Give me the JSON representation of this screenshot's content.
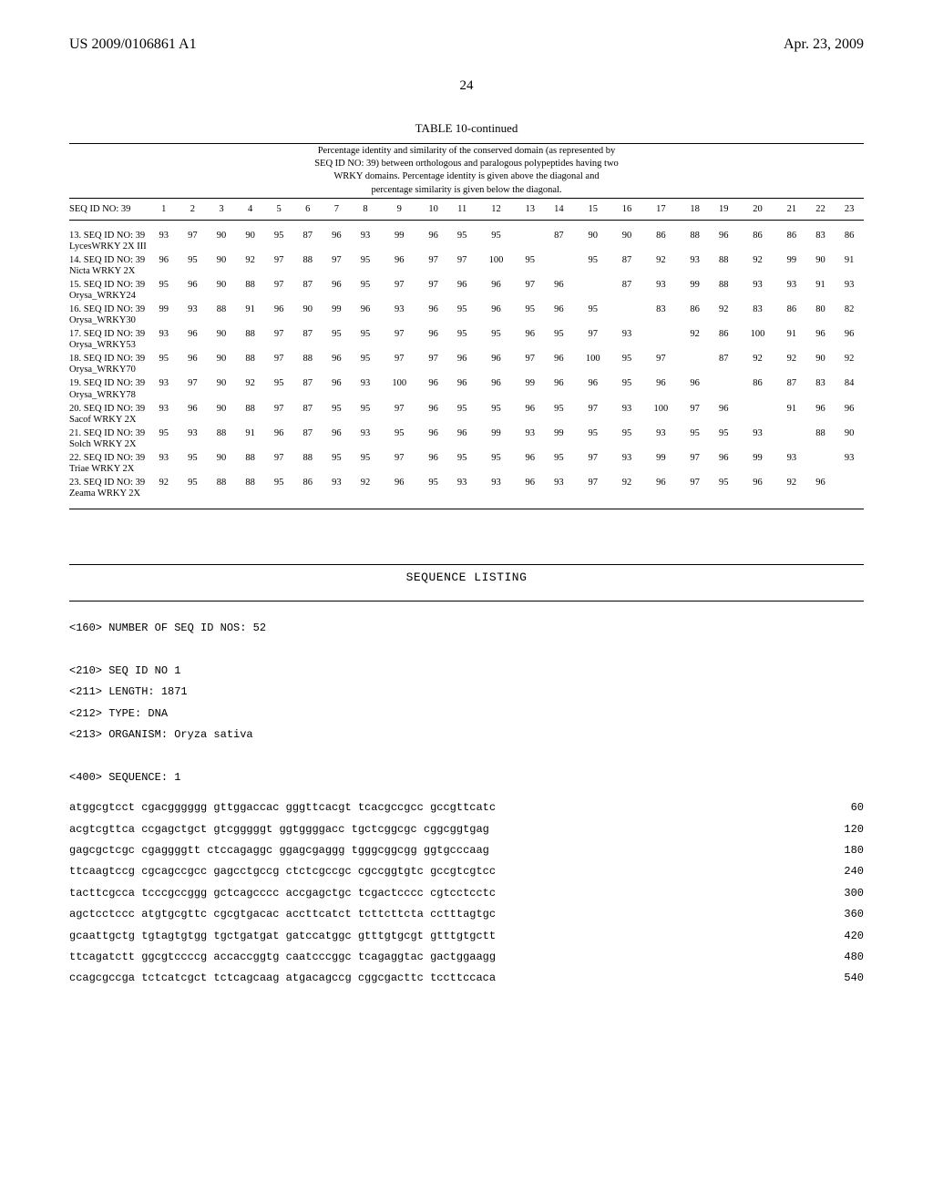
{
  "header": {
    "doc_number": "US 2009/0106861 A1",
    "date": "Apr. 23, 2009",
    "page_number": "24"
  },
  "table": {
    "title": "TABLE 10-continued",
    "caption_lines": [
      "Percentage identity and similarity of the conserved domain (as represented by",
      "SEQ ID NO: 39) between orthologous and paralogous polypeptides having two",
      "WRKY domains. Percentage identity is given above the diagonal and",
      "percentage similarity is given below the diagonal."
    ],
    "col_header_first": "SEQ ID NO: 39",
    "col_nums": [
      "1",
      "2",
      "3",
      "4",
      "5",
      "6",
      "7",
      "8",
      "9",
      "10",
      "11",
      "12",
      "13",
      "14",
      "15",
      "16",
      "17",
      "18",
      "19",
      "20",
      "21",
      "22",
      "23"
    ],
    "rows": [
      {
        "label": "13. SEQ ID NO: 39 LycesWRKY 2X III",
        "vals": [
          "93",
          "97",
          "90",
          "90",
          "95",
          "87",
          "96",
          "93",
          "99",
          "96",
          "95",
          "95",
          "",
          "87",
          "90",
          "90",
          "86",
          "88",
          "96",
          "86",
          "86",
          "83",
          "86"
        ]
      },
      {
        "label": "14. SEQ ID NO: 39 Nicta WRKY 2X",
        "vals": [
          "96",
          "95",
          "90",
          "92",
          "97",
          "88",
          "97",
          "95",
          "96",
          "97",
          "97",
          "100",
          "95",
          "",
          "95",
          "87",
          "92",
          "93",
          "88",
          "92",
          "99",
          "90",
          "91"
        ]
      },
      {
        "label": "15. SEQ ID NO: 39 Orysa_WRKY24",
        "vals": [
          "95",
          "96",
          "90",
          "88",
          "97",
          "87",
          "96",
          "95",
          "97",
          "97",
          "96",
          "96",
          "97",
          "96",
          "",
          "87",
          "93",
          "99",
          "88",
          "93",
          "93",
          "91",
          "93"
        ]
      },
      {
        "label": "16. SEQ ID NO: 39 Orysa_WRKY30",
        "vals": [
          "99",
          "93",
          "88",
          "91",
          "96",
          "90",
          "99",
          "96",
          "93",
          "96",
          "95",
          "96",
          "95",
          "96",
          "95",
          "",
          "83",
          "86",
          "92",
          "83",
          "86",
          "80",
          "82"
        ]
      },
      {
        "label": "17. SEQ ID NO: 39 Orysa_WRKY53",
        "vals": [
          "93",
          "96",
          "90",
          "88",
          "97",
          "87",
          "95",
          "95",
          "97",
          "96",
          "95",
          "95",
          "96",
          "95",
          "97",
          "93",
          "",
          "92",
          "86",
          "100",
          "91",
          "96",
          "96"
        ]
      },
      {
        "label": "18. SEQ ID NO: 39 Orysa_WRKY70",
        "vals": [
          "95",
          "96",
          "90",
          "88",
          "97",
          "88",
          "96",
          "95",
          "97",
          "97",
          "96",
          "96",
          "97",
          "96",
          "100",
          "95",
          "97",
          "",
          "87",
          "92",
          "92",
          "90",
          "92"
        ]
      },
      {
        "label": "19. SEQ ID NO: 39 Orysa_WRKY78",
        "vals": [
          "93",
          "97",
          "90",
          "92",
          "95",
          "87",
          "96",
          "93",
          "100",
          "96",
          "96",
          "96",
          "99",
          "96",
          "96",
          "95",
          "96",
          "96",
          "",
          "86",
          "87",
          "83",
          "84"
        ]
      },
      {
        "label": "20. SEQ ID NO: 39 Sacof WRKY 2X",
        "vals": [
          "93",
          "96",
          "90",
          "88",
          "97",
          "87",
          "95",
          "95",
          "97",
          "96",
          "95",
          "95",
          "96",
          "95",
          "97",
          "93",
          "100",
          "97",
          "96",
          "",
          "91",
          "96",
          "96"
        ]
      },
      {
        "label": "21. SEQ ID NO: 39 Solch WRKY 2X",
        "vals": [
          "95",
          "93",
          "88",
          "91",
          "96",
          "87",
          "96",
          "93",
          "95",
          "96",
          "96",
          "99",
          "93",
          "99",
          "95",
          "95",
          "93",
          "95",
          "95",
          "93",
          "",
          "88",
          "90"
        ]
      },
      {
        "label": "22. SEQ ID NO: 39 Triae WRKY 2X",
        "vals": [
          "93",
          "95",
          "90",
          "88",
          "97",
          "88",
          "95",
          "95",
          "97",
          "96",
          "95",
          "95",
          "96",
          "95",
          "97",
          "93",
          "99",
          "97",
          "96",
          "99",
          "93",
          "",
          "93"
        ]
      },
      {
        "label": "23. SEQ ID NO: 39 Zeama WRKY 2X",
        "vals": [
          "92",
          "95",
          "88",
          "88",
          "95",
          "86",
          "93",
          "92",
          "96",
          "95",
          "93",
          "93",
          "96",
          "93",
          "97",
          "92",
          "96",
          "97",
          "95",
          "96",
          "92",
          "96",
          ""
        ]
      }
    ]
  },
  "sequence": {
    "title": "SEQUENCE LISTING",
    "meta": [
      "<160> NUMBER OF SEQ ID NOS: 52",
      "",
      "<210> SEQ ID NO 1",
      "<211> LENGTH: 1871",
      "<212> TYPE: DNA",
      "<213> ORGANISM: Oryza sativa",
      "",
      "<400> SEQUENCE: 1"
    ],
    "lines": [
      {
        "seq": "atggcgtcct cgacgggggg gttggaccac gggttcacgt tcacgccgcc gccgttcatc",
        "pos": "60"
      },
      {
        "seq": "acgtcgttca ccgagctgct gtcgggggt ggtggggacc tgctcggcgc cggcggtgag",
        "pos": "120"
      },
      {
        "seq": "gagcgctcgc cgaggggtt ctccagaggc ggagcgaggg tgggcggcgg ggtgcccaag",
        "pos": "180"
      },
      {
        "seq": "ttcaagtccg cgcagccgcc gagcctgccg ctctcgccgc cgccggtgtc gccgtcgtcc",
        "pos": "240"
      },
      {
        "seq": "tacttcgcca tcccgccggg gctcagcccc accgagctgc tcgactcccc cgtcctcctc",
        "pos": "300"
      },
      {
        "seq": "agctcctccc atgtgcgttc cgcgtgacac accttcatct tcttcttcta cctttagtgc",
        "pos": "360"
      },
      {
        "seq": "gcaattgctg tgtagtgtgg tgctgatgat gatccatggc gtttgtgcgt gtttgtgctt",
        "pos": "420"
      },
      {
        "seq": "ttcagatctt ggcgtccccg accaccggtg caatcccggc tcagaggtac gactggaagg",
        "pos": "480"
      },
      {
        "seq": "ccagcgccga tctcatcgct tctcagcaag atgacagccg cggcgacttc tccttccaca",
        "pos": "540"
      }
    ]
  }
}
